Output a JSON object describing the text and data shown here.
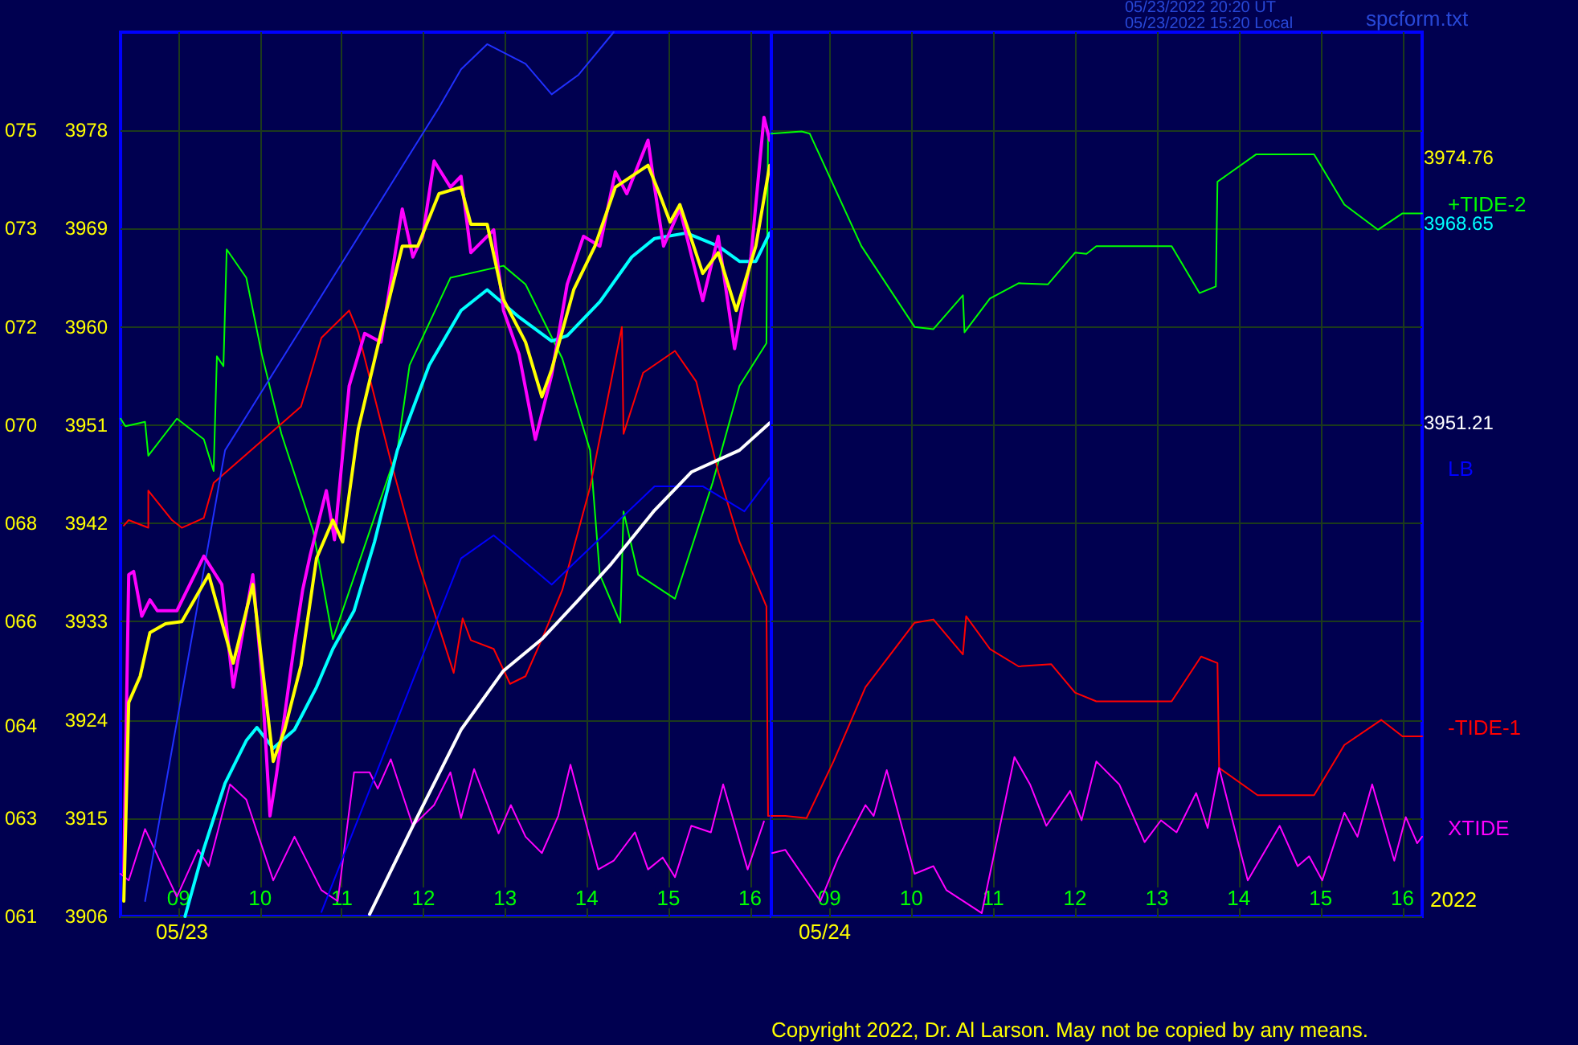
{
  "chart_data": [
    {
      "type": "line",
      "annotations": [
        "05/23/2022 20:20 UT",
        "05/23/2022 15:20 Local",
        "spcform.txt",
        "Copyright 2022, Dr. Al Larson. May not be copied by any means.",
        "05/23"
      ],
      "xlim": [
        8.29,
        16.26
      ],
      "ylim": [
        3906,
        3987
      ],
      "y2lim": [
        61,
        76.75
      ],
      "xticks": [
        {
          "value": 9,
          "label": "09"
        },
        {
          "value": 10,
          "label": "10"
        },
        {
          "value": 11,
          "label": "11"
        },
        {
          "value": 12,
          "label": "12"
        },
        {
          "value": 13,
          "label": "13"
        },
        {
          "value": 14,
          "label": "14"
        },
        {
          "value": 15,
          "label": "15"
        },
        {
          "value": 16,
          "label": "16"
        }
      ],
      "yticks": [
        3906,
        3915,
        3924,
        3933,
        3942,
        3951,
        3960,
        3969,
        3978
      ],
      "y2ticks": [
        {
          "value": 61,
          "label": "061"
        },
        {
          "value": 62.75,
          "label": "063"
        },
        {
          "value": 64.4,
          "label": "064"
        },
        {
          "value": 66.25,
          "label": "066"
        },
        {
          "value": 68,
          "label": "068"
        },
        {
          "value": 69.75,
          "label": "070"
        },
        {
          "value": 71.5,
          "label": "072"
        },
        {
          "value": 73.25,
          "label": "073"
        },
        {
          "value": 75,
          "label": "075"
        }
      ],
      "grid": true,
      "legend": false,
      "marker": "none",
      "line_style": "solid",
      "series": [
        {
          "color": "#00ff00",
          "x": [
            8.29,
            8.35,
            8.59,
            8.63,
            8.98,
            9.31,
            9.43,
            9.47,
            9.55,
            9.59,
            9.83,
            10.02,
            10.26,
            10.65,
            10.89,
            11.68,
            11.83,
            12.33,
            12.98,
            13.25,
            13.7,
            14.04,
            14.16,
            14.41,
            14.45,
            14.63,
            15.08,
            15.54,
            15.87,
            16.2,
            16.22,
            16.26
          ],
          "values": [
            3951.6,
            3950.9,
            3951.3,
            3948.2,
            3951.6,
            3949.7,
            3946.8,
            3957.3,
            3956.4,
            3967.1,
            3964.5,
            3957.5,
            3950.2,
            3941.3,
            3931.4,
            3948.7,
            3956.5,
            3964.5,
            3965.6,
            3963.9,
            3957.1,
            3948.7,
            3937.3,
            3932.9,
            3943.1,
            3937.3,
            3935.1,
            3945.7,
            3954.6,
            3958.5,
            3977.7,
            3977.7
          ]
        },
        {
          "color": "#ff0000",
          "x": [
            8.33,
            8.39,
            8.63,
            8.63,
            8.92,
            9.04,
            9.31,
            9.43,
            10.5,
            10.75,
            11.09,
            11.2,
            11.6,
            11.93,
            12.37,
            12.48,
            12.58,
            12.86,
            13.06,
            13.25,
            13.45,
            13.7,
            14.04,
            14.43,
            14.45,
            14.69,
            15.08,
            15.34,
            15.61,
            15.87,
            16.2,
            16.22,
            16.26
          ],
          "values": [
            3941.8,
            3942.3,
            3941.6,
            3945,
            3942.3,
            3941.6,
            3942.5,
            3945.7,
            3952.7,
            3959,
            3961.5,
            3959.5,
            3947.7,
            3938.6,
            3928.3,
            3933.3,
            3931.3,
            3930.5,
            3927.3,
            3928,
            3931.4,
            3935.9,
            3945.3,
            3960,
            3950.2,
            3955.8,
            3957.8,
            3955,
            3946.7,
            3940.3,
            3934.4,
            3915.2,
            3915.2
          ]
        },
        {
          "color": "#ff00ff",
          "x": [
            8.29,
            8.39,
            8.59,
            8.98,
            9.24,
            9.37,
            9.63,
            9.83,
            10.16,
            10.42,
            10.75,
            10.95,
            11.15,
            11.34,
            11.44,
            11.6,
            11.87,
            12.13,
            12.33,
            12.46,
            12.62,
            12.92,
            13.07,
            13.25,
            13.45,
            13.65,
            13.8,
            14.14,
            14.33,
            14.59,
            14.75,
            14.93,
            15.08,
            15.28,
            15.52,
            15.67,
            15.97,
            16.17
          ],
          "values": [
            3909.9,
            3909.3,
            3914,
            3907.8,
            3912.1,
            3910.6,
            3918.1,
            3916.7,
            3909.3,
            3913.3,
            3908.4,
            3907.4,
            3919.2,
            3919.2,
            3917.7,
            3920.4,
            3914.3,
            3916.2,
            3919.2,
            3915,
            3919.5,
            3913.6,
            3916.2,
            3913.3,
            3911.8,
            3915.2,
            3919.9,
            3910.3,
            3911.1,
            3913.7,
            3910.3,
            3911.4,
            3909.6,
            3914.3,
            3913.7,
            3918.1,
            3910.3,
            3914.7
          ]
        },
        {
          "name": "LB",
          "color": "#0000ff",
          "x": [
            10.75,
            12.46,
            12.86,
            13.57,
            14.83,
            15.42,
            15.93,
            16.24
          ],
          "values": [
            3906.4,
            3938.8,
            3940.9,
            3936.4,
            3945.4,
            3945.4,
            3943.1,
            3946.2
          ]
        },
        {
          "color": "#2030ff",
          "x": [
            8.59,
            9.57,
            12.19,
            12.46,
            12.78,
            13.25,
            13.57,
            13.9,
            14.33
          ],
          "values": [
            3907.4,
            3948.7,
            3980.1,
            3983.6,
            3985.9,
            3984.1,
            3981.3,
            3983.1,
            3987
          ]
        },
        {
          "color": "#ffffff",
          "x": [
            11.34,
            11.93,
            12.46,
            12.98,
            13.45,
            13.9,
            14.3,
            14.83,
            15.28,
            15.87,
            16.24
          ],
          "values": [
            3906.2,
            3915.2,
            3923.1,
            3928.5,
            3931.4,
            3935,
            3938.3,
            3943.2,
            3946.7,
            3948.7,
            3951.2
          ]
        },
        {
          "color": "#00ffff",
          "x": [
            9.08,
            9.31,
            9.57,
            9.83,
            9.96,
            10.16,
            10.42,
            10.69,
            10.89,
            11.15,
            11.4,
            11.68,
            12.07,
            12.46,
            12.78,
            13.17,
            13.57,
            13.76,
            14.16,
            14.55,
            14.83,
            15.22,
            15.61,
            15.87,
            16.07,
            16.24
          ],
          "values": [
            3906,
            3912.2,
            3918.2,
            3922.1,
            3923.3,
            3921.4,
            3923.1,
            3927,
            3930.5,
            3934,
            3940.3,
            3948.7,
            3956.5,
            3961.5,
            3963.4,
            3960.9,
            3958.7,
            3959.2,
            3962.3,
            3966.4,
            3968.1,
            3968.6,
            3967.4,
            3966,
            3966,
            3968.6
          ]
        },
        {
          "color": "#ff00ff",
          "x": [
            8.33,
            8.39,
            8.45,
            8.55,
            8.65,
            8.74,
            8.98,
            9.31,
            9.53,
            9.67,
            9.91,
            10.02,
            10.12,
            10.2,
            10.42,
            10.52,
            10.61,
            10.81,
            10.91,
            11.09,
            11.28,
            11.48,
            11.74,
            11.87,
            11.99,
            12.13,
            12.33,
            12.46,
            12.58,
            12.86,
            12.98,
            13.17,
            13.37,
            13.57,
            13.76,
            13.96,
            14.16,
            14.35,
            14.49,
            14.75,
            14.83,
            14.94,
            15.14,
            15.42,
            15.61,
            15.81,
            16.01,
            16.17,
            16.24
          ],
          "values": [
            3910,
            3937.3,
            3937.6,
            3933.5,
            3935,
            3934,
            3934,
            3939,
            3936.4,
            3927,
            3937.3,
            3928,
            3915.2,
            3919,
            3931,
            3935.9,
            3939,
            3945,
            3940.5,
            3954.6,
            3959.4,
            3958.6,
            3970.8,
            3966.4,
            3968.3,
            3975.2,
            3972.8,
            3973.8,
            3966.8,
            3968.9,
            3961.5,
            3957.5,
            3949.7,
            3955.6,
            3963.9,
            3968.3,
            3967.4,
            3974.2,
            3972.2,
            3977.1,
            3972.8,
            3967.4,
            3970.8,
            3962.4,
            3968.3,
            3958,
            3966.4,
            3979.2,
            3977.1
          ]
        },
        {
          "color": "#ffff00",
          "x": [
            8.33,
            8.39,
            8.53,
            8.65,
            8.84,
            9.04,
            9.37,
            9.67,
            9.91,
            10.16,
            10.3,
            10.5,
            10.69,
            10.89,
            11.01,
            11.2,
            11.48,
            11.74,
            11.93,
            12.19,
            12.46,
            12.58,
            12.78,
            12.98,
            13.25,
            13.45,
            13.57,
            13.84,
            14.1,
            14.35,
            14.75,
            14.89,
            15.02,
            15.14,
            15.42,
            15.61,
            15.83,
            16.07,
            16.24
          ],
          "values": [
            3907.4,
            3925.6,
            3928,
            3932,
            3932.8,
            3933,
            3937.3,
            3929.2,
            3936.4,
            3920.2,
            3923.1,
            3929,
            3938.8,
            3942.3,
            3940.3,
            3950.6,
            3959.5,
            3967.4,
            3967.4,
            3972.2,
            3972.8,
            3969.4,
            3969.4,
            3962.5,
            3958.6,
            3953.6,
            3956.1,
            3963.4,
            3967.4,
            3972.8,
            3974.8,
            3972.2,
            3969.6,
            3971.2,
            3964.9,
            3966.8,
            3961.5,
            3967.4,
            3974.8
          ]
        }
      ]
    },
    {
      "type": "line",
      "annotations": [
        "05/24",
        "2022",
        "3974.76",
        "3968.65",
        "3951.21"
      ],
      "xlim": [
        8.29,
        16.24
      ],
      "ylim": [
        3906,
        3987
      ],
      "xticks": [
        {
          "value": 9,
          "label": "09"
        },
        {
          "value": 10,
          "label": "10"
        },
        {
          "value": 11,
          "label": "11"
        },
        {
          "value": 12,
          "label": "12"
        },
        {
          "value": 13,
          "label": "13"
        },
        {
          "value": 14,
          "label": "14"
        },
        {
          "value": 15,
          "label": "15"
        },
        {
          "value": 16,
          "label": "16"
        }
      ],
      "yticks": [
        3906,
        3915,
        3924,
        3933,
        3942,
        3951,
        3960,
        3969,
        3978
      ],
      "tick_labels": "x",
      "grid": true,
      "legend": false,
      "marker": "none",
      "line_style": "solid",
      "series": [
        {
          "name": "+TIDE-2",
          "color": "#00ff00",
          "x": [
            8.29,
            8.66,
            8.76,
            9.39,
            10.04,
            10.27,
            10.63,
            10.65,
            10.96,
            11.31,
            11.67,
            12.0,
            12.14,
            12.26,
            13.18,
            13.52,
            13.72,
            13.74,
            14.21,
            14.92,
            15.29,
            15.7,
            16.0,
            16.24
          ],
          "values": [
            3977.7,
            3977.9,
            3977.7,
            3967.4,
            3960,
            3959.8,
            3962.9,
            3959.5,
            3962.6,
            3964,
            3963.9,
            3966.8,
            3966.7,
            3967.4,
            3967.4,
            3963.1,
            3963.7,
            3973.3,
            3975.8,
            3975.8,
            3971.2,
            3968.9,
            3970.4,
            3970.4
          ]
        },
        {
          "name": "-TIDE-1",
          "color": "#ff0000",
          "x": [
            8.29,
            8.46,
            8.72,
            9.05,
            9.44,
            10.04,
            10.27,
            10.63,
            10.67,
            10.96,
            11.31,
            11.71,
            12.0,
            12.26,
            13.18,
            13.54,
            13.74,
            13.76,
            14.23,
            14.92,
            15.29,
            15.74,
            16.0,
            16.24
          ],
          "values": [
            3915.2,
            3915.2,
            3915,
            3920.2,
            3927,
            3932.9,
            3933.2,
            3930,
            3933.5,
            3930.5,
            3928.9,
            3929.1,
            3926.5,
            3925.7,
            3925.7,
            3929.8,
            3929.2,
            3919.6,
            3917.1,
            3917.1,
            3921.7,
            3924,
            3922.5,
            3922.5
          ]
        },
        {
          "name": "XTIDE",
          "color": "#ff00ff",
          "x": [
            8.3,
            8.46,
            8.89,
            9.11,
            9.44,
            9.54,
            9.7,
            10.04,
            10.27,
            10.43,
            10.86,
            11.26,
            11.45,
            11.65,
            11.94,
            12.08,
            12.26,
            12.54,
            12.85,
            13.05,
            13.24,
            13.48,
            13.62,
            13.76,
            14.11,
            14.5,
            14.72,
            14.86,
            15.02,
            15.29,
            15.45,
            15.63,
            15.9,
            16.04,
            16.18,
            16.24
          ],
          "values": [
            3911.8,
            3912.1,
            3907.4,
            3911.4,
            3916.2,
            3915.2,
            3919.4,
            3909.9,
            3910.6,
            3908.4,
            3906.3,
            3920.6,
            3918.1,
            3914.3,
            3917.5,
            3914.8,
            3920.2,
            3918.1,
            3912.8,
            3914.8,
            3913.7,
            3917.3,
            3914.1,
            3919.6,
            3909.3,
            3914.3,
            3910.6,
            3911.5,
            3909.3,
            3915.5,
            3913.3,
            3918.1,
            3911.1,
            3915.1,
            3912.7,
            3913.3
          ]
        }
      ]
    }
  ]
}
